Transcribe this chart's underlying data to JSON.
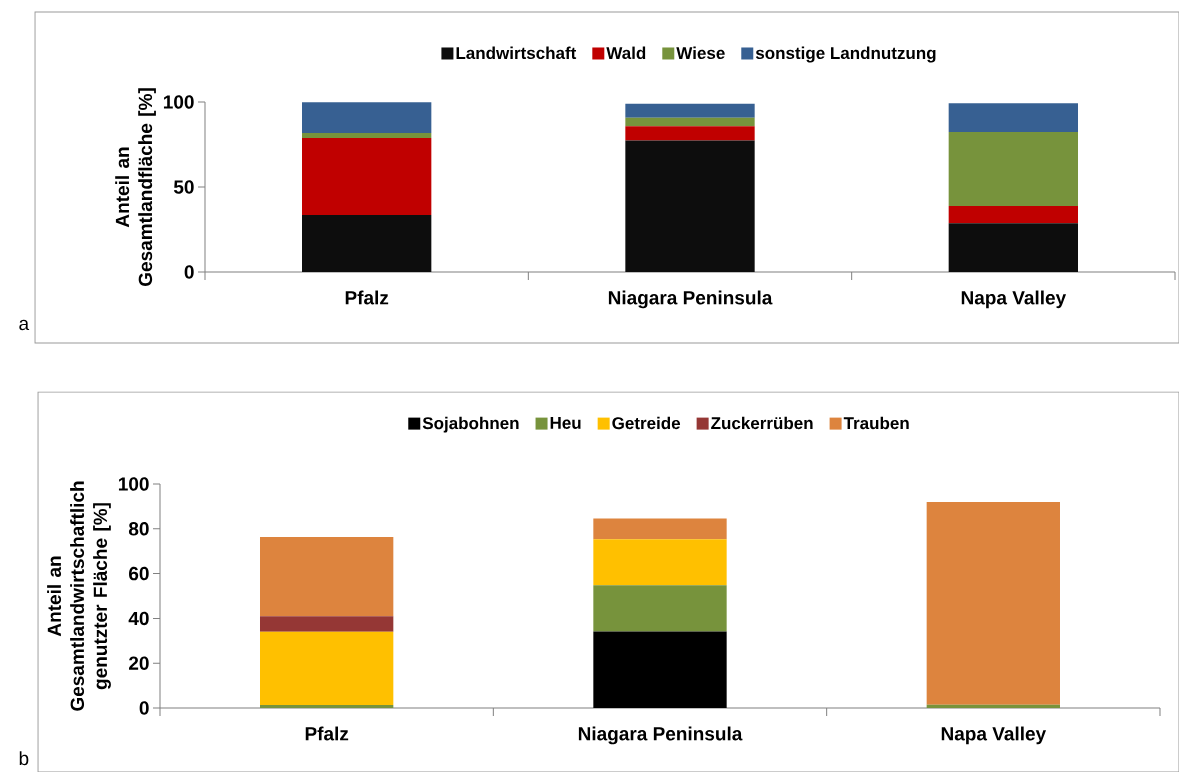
{
  "chart_data": [
    {
      "type": "bar",
      "stacked": true,
      "categories": [
        "Pfalz",
        "Niagara Peninsula",
        "Napa Valley"
      ],
      "ylabel": "Anteil an Gesamtlandfläche [%]",
      "ylim": [
        0,
        100
      ],
      "yticks": [
        0,
        50,
        100
      ],
      "legend": "top",
      "grid": false,
      "annotations": [
        "a"
      ],
      "series": [
        {
          "name": "Landwirtschaft",
          "color": "#0d0d0d",
          "values": [
            33.5,
            77.4,
            28.7
          ]
        },
        {
          "name": "Wald",
          "color": "#c00000",
          "values": [
            45.3,
            8.4,
            10.1
          ]
        },
        {
          "name": "Wiese",
          "color": "#77933c",
          "values": [
            3,
            5,
            43.5
          ]
        },
        {
          "name": "sonstige Landnutzung",
          "color": "#376092",
          "values": [
            18,
            8.1,
            17
          ]
        }
      ]
    },
    {
      "type": "bar",
      "stacked": true,
      "categories": [
        "Pfalz",
        "Niagara Peninsula",
        "Napa Valley"
      ],
      "ylabel": "Anteil an Gesamtlandwirtschaftlich genutzter Fläche [%]",
      "ylim": [
        0,
        100
      ],
      "yticks": [
        0,
        20,
        40,
        60,
        80,
        100
      ],
      "legend": "top",
      "grid": false,
      "annotations": [
        "b"
      ],
      "series": [
        {
          "name": "Sojabohnen",
          "color": "#000000",
          "values": [
            0,
            34.2,
            0
          ]
        },
        {
          "name": "Heu",
          "color": "#77933c",
          "values": [
            1.3,
            20.6,
            1.5
          ]
        },
        {
          "name": "Getreide",
          "color": "#ffc000",
          "values": [
            32.7,
            20.5,
            0
          ]
        },
        {
          "name": "Zuckerrüben",
          "color": "#953735",
          "values": [
            7,
            0,
            0
          ]
        },
        {
          "name": "Trauben",
          "color": "#dd843e",
          "values": [
            35.3,
            9.3,
            90.5
          ]
        }
      ]
    }
  ]
}
